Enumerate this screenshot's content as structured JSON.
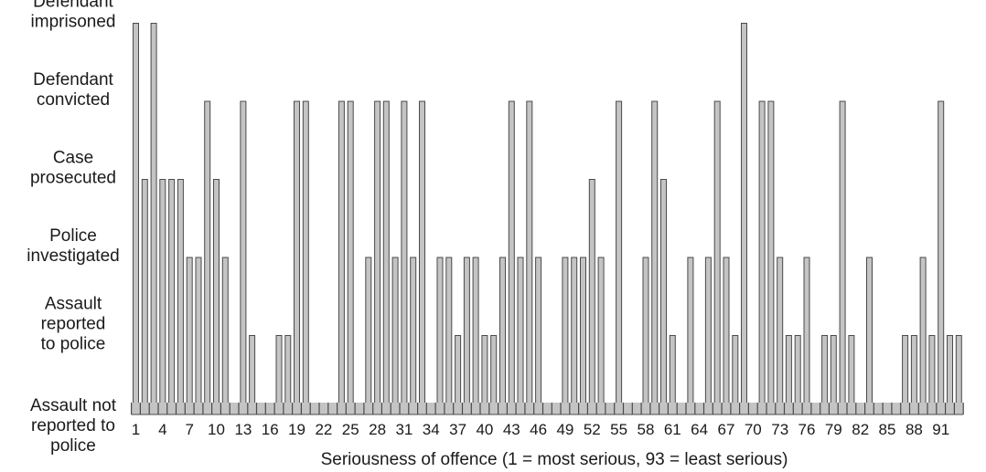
{
  "chart_data": {
    "type": "bar",
    "title": "",
    "xlabel": "Seriousness of offence (1 = most serious, 93 = least serious)",
    "ylabel": "",
    "y_levels": [
      [
        "Assault not",
        "reported to",
        "police"
      ],
      [
        "Assault",
        "reported",
        "to police"
      ],
      [
        "Police",
        "investigated"
      ],
      [
        "Case",
        "prosecuted"
      ],
      [
        "Defendant",
        "convicted"
      ],
      [
        "Defendant",
        "imprisoned"
      ]
    ],
    "categories": [
      1,
      2,
      3,
      4,
      5,
      6,
      7,
      8,
      9,
      10,
      11,
      12,
      13,
      14,
      15,
      16,
      17,
      18,
      19,
      20,
      21,
      22,
      23,
      24,
      25,
      26,
      27,
      28,
      29,
      30,
      31,
      32,
      33,
      34,
      35,
      36,
      37,
      38,
      39,
      40,
      41,
      42,
      43,
      44,
      45,
      46,
      47,
      48,
      49,
      50,
      51,
      52,
      53,
      54,
      55,
      56,
      57,
      58,
      59,
      60,
      61,
      62,
      63,
      64,
      65,
      66,
      67,
      68,
      69,
      70,
      71,
      72,
      73,
      74,
      75,
      76,
      77,
      78,
      79,
      80,
      81,
      82,
      83,
      84,
      85,
      86,
      87,
      88,
      89,
      90,
      91,
      92,
      93
    ],
    "x_tick_labels": [
      "1",
      "4",
      "7",
      "10",
      "13",
      "16",
      "19",
      "22",
      "25",
      "28",
      "31",
      "34",
      "37",
      "40",
      "43",
      "46",
      "49",
      "52",
      "55",
      "58",
      "61",
      "64",
      "67",
      "70",
      "73",
      "76",
      "79",
      "82",
      "85",
      "88",
      "91"
    ],
    "values": [
      5,
      3,
      5,
      3,
      3,
      3,
      2,
      2,
      4,
      3,
      2,
      0,
      4,
      1,
      0,
      0,
      1,
      1,
      4,
      4,
      0,
      0,
      0,
      4,
      4,
      0,
      2,
      4,
      4,
      2,
      4,
      2,
      4,
      0,
      2,
      2,
      1,
      2,
      2,
      1,
      1,
      2,
      4,
      2,
      4,
      2,
      0,
      0,
      2,
      2,
      2,
      3,
      2,
      0,
      4,
      0,
      0,
      2,
      4,
      3,
      1,
      0,
      2,
      0,
      2,
      4,
      2,
      1,
      5,
      0,
      4,
      4,
      2,
      1,
      1,
      2,
      0,
      1,
      1,
      4,
      1,
      0,
      2,
      0,
      0,
      0,
      1,
      1,
      2,
      1,
      4,
      1,
      1
    ],
    "ylim": [
      0,
      5
    ],
    "grid": false,
    "bar_color": "#c4c4c4",
    "bar_edge_color": "#4a4a4a"
  }
}
